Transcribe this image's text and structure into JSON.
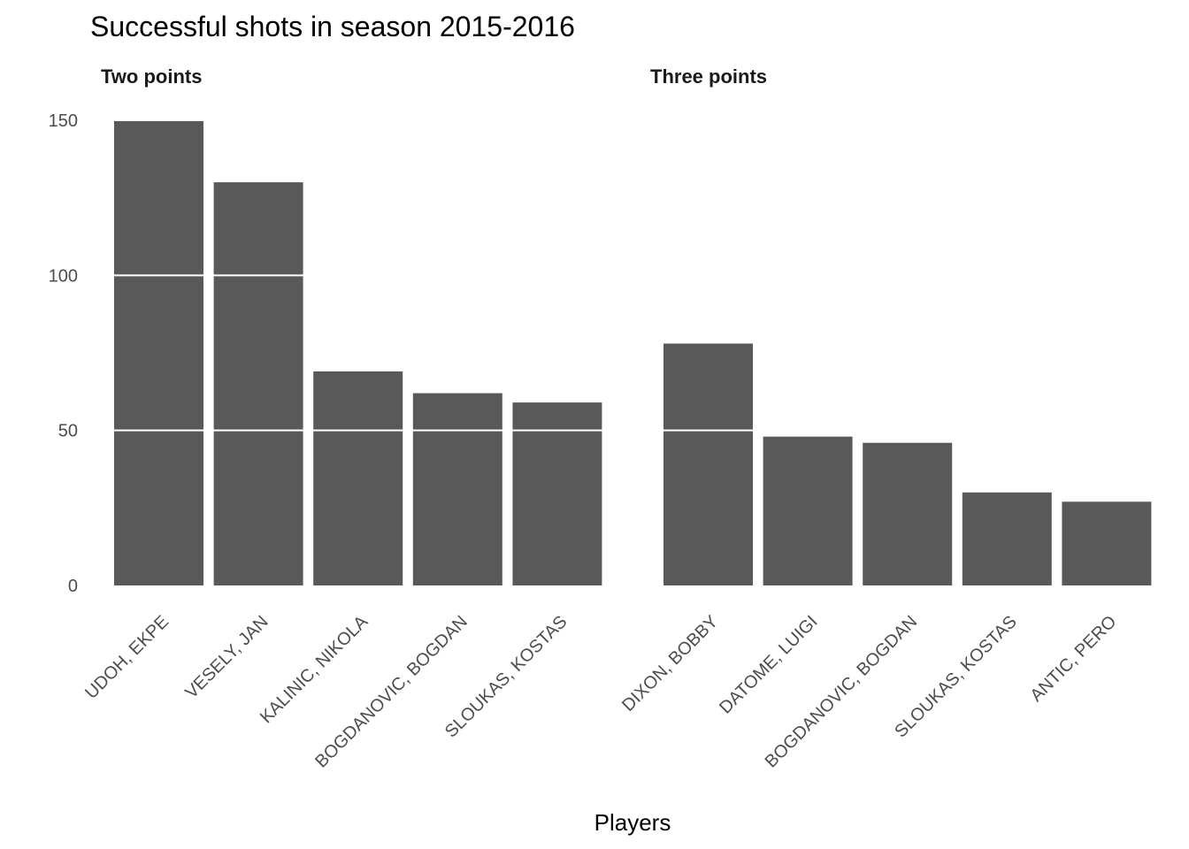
{
  "chart_data": {
    "type": "bar",
    "title": "Successful shots in season 2015-2016",
    "xlabel": "Players",
    "ylabel": "",
    "ylim": [
      0,
      150
    ],
    "yticks": [
      0,
      50,
      100,
      150
    ],
    "bar_color": "#595959",
    "grid_color": "#ffffff",
    "grid": true,
    "legend": false,
    "facets": [
      {
        "title": "Two points",
        "categories": [
          "UDOH, EKPE",
          "VESELY, JAN",
          "KALINIC, NIKOLA",
          "BOGDANOVIC, BOGDAN",
          "SLOUKAS, KOSTAS"
        ],
        "values": [
          150,
          130,
          69,
          62,
          59
        ]
      },
      {
        "title": "Three points",
        "categories": [
          "DIXON, BOBBY",
          "DATOME, LUIGI",
          "BOGDANOVIC, BOGDAN",
          "SLOUKAS, KOSTAS",
          "ANTIC, PERO"
        ],
        "values": [
          78,
          48,
          46,
          30,
          27
        ]
      }
    ]
  }
}
